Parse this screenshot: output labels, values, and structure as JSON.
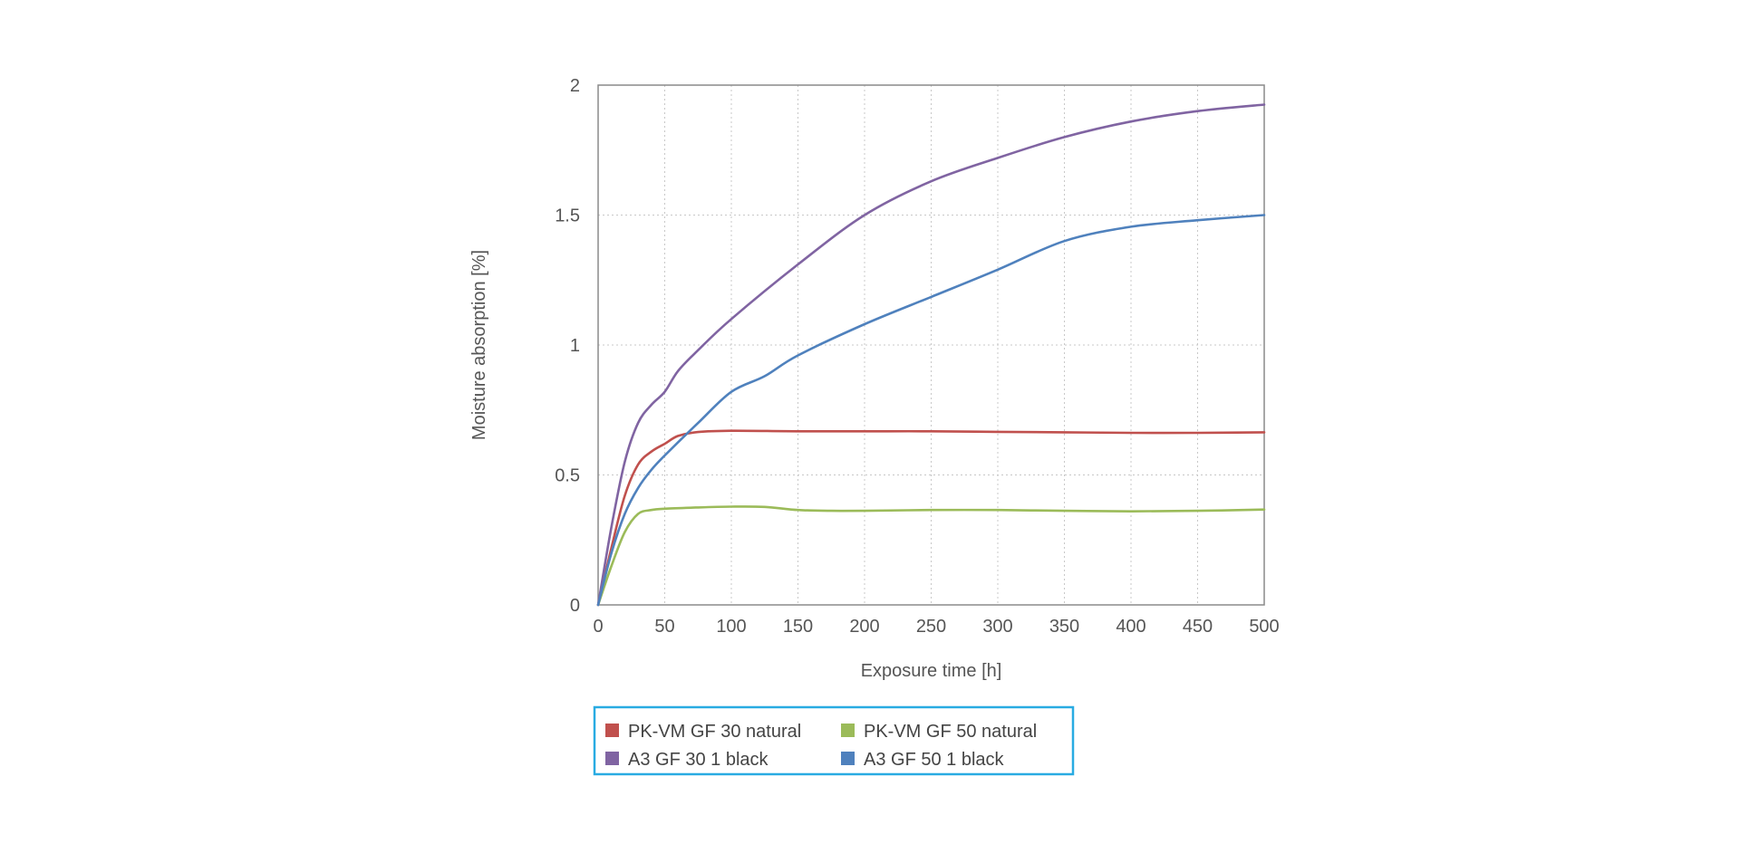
{
  "chart_data": {
    "type": "line",
    "title": "",
    "xlabel": "Exposure time [h]",
    "ylabel": "Moisture absorption [%]",
    "xlim": [
      0,
      500
    ],
    "ylim": [
      0,
      2
    ],
    "x_ticks": [
      0,
      50,
      100,
      150,
      200,
      250,
      300,
      350,
      400,
      450,
      500
    ],
    "y_ticks": [
      0,
      0.5,
      1,
      1.5,
      2
    ],
    "y_tick_labels": [
      "0",
      "0.5",
      "1",
      "1.5",
      "2"
    ],
    "grid": true,
    "legend_position": "bottom",
    "series": [
      {
        "name": "PK-VM GF 30 natural",
        "color": "#c0504d",
        "points": [
          [
            0,
            0
          ],
          [
            10,
            0.22
          ],
          [
            20,
            0.42
          ],
          [
            30,
            0.54
          ],
          [
            40,
            0.59
          ],
          [
            50,
            0.62
          ],
          [
            60,
            0.65
          ],
          [
            75,
            0.665
          ],
          [
            100,
            0.67
          ],
          [
            150,
            0.668
          ],
          [
            200,
            0.668
          ],
          [
            250,
            0.668
          ],
          [
            300,
            0.666
          ],
          [
            350,
            0.664
          ],
          [
            400,
            0.662
          ],
          [
            450,
            0.662
          ],
          [
            500,
            0.664
          ]
        ]
      },
      {
        "name": "PK-VM GF 50 natural",
        "color": "#9bbb59",
        "points": [
          [
            0,
            0
          ],
          [
            10,
            0.15
          ],
          [
            20,
            0.28
          ],
          [
            30,
            0.35
          ],
          [
            40,
            0.365
          ],
          [
            50,
            0.37
          ],
          [
            75,
            0.375
          ],
          [
            100,
            0.378
          ],
          [
            125,
            0.377
          ],
          [
            150,
            0.365
          ],
          [
            175,
            0.362
          ],
          [
            200,
            0.362
          ],
          [
            250,
            0.365
          ],
          [
            300,
            0.365
          ],
          [
            350,
            0.362
          ],
          [
            400,
            0.36
          ],
          [
            450,
            0.362
          ],
          [
            500,
            0.367
          ]
        ]
      },
      {
        "name": "A3 GF 30 1 black",
        "color": "#8064a2",
        "points": [
          [
            0,
            0
          ],
          [
            10,
            0.3
          ],
          [
            20,
            0.55
          ],
          [
            30,
            0.7
          ],
          [
            40,
            0.77
          ],
          [
            50,
            0.82
          ],
          [
            60,
            0.9
          ],
          [
            75,
            0.98
          ],
          [
            100,
            1.1
          ],
          [
            150,
            1.31
          ],
          [
            200,
            1.5
          ],
          [
            250,
            1.63
          ],
          [
            300,
            1.72
          ],
          [
            350,
            1.8
          ],
          [
            400,
            1.86
          ],
          [
            450,
            1.9
          ],
          [
            500,
            1.925
          ]
        ]
      },
      {
        "name": "A3 GF 50 1 black",
        "color": "#4f81bd",
        "points": [
          [
            0,
            0
          ],
          [
            10,
            0.2
          ],
          [
            20,
            0.35
          ],
          [
            30,
            0.45
          ],
          [
            40,
            0.52
          ],
          [
            50,
            0.575
          ],
          [
            75,
            0.7
          ],
          [
            100,
            0.82
          ],
          [
            125,
            0.88
          ],
          [
            150,
            0.96
          ],
          [
            200,
            1.08
          ],
          [
            250,
            1.185
          ],
          [
            300,
            1.29
          ],
          [
            350,
            1.4
          ],
          [
            400,
            1.455
          ],
          [
            450,
            1.48
          ],
          [
            500,
            1.5
          ]
        ]
      }
    ]
  },
  "legend": {
    "border_color": "#29abe2",
    "rows": [
      [
        "PK-VM GF 30 natural",
        "PK-VM GF 50 natural"
      ],
      [
        "A3 GF 30 1 black",
        "A3 GF 50 1 black"
      ]
    ]
  }
}
